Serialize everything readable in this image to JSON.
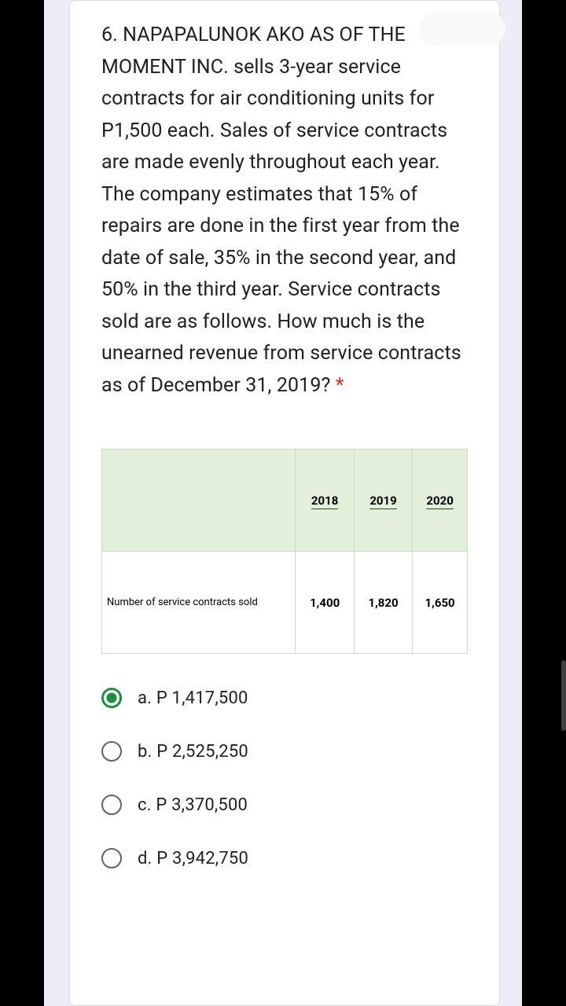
{
  "question": {
    "prefix": "6. ",
    "text": "NAPAPALUNOK AKO AS OF THE MOMENT INC. sells 3-year service contracts for air conditioning units for P1,500 each. Sales of service contracts are made evenly throughout each year. The company estimates that 15% of repairs are done in the first year from the date of sale, 35% in the second year, and 50% in the third year. Service contracts sold are as follows. How much is the unearned revenue from service contracts as of December 31, 2019?",
    "required_marker": " *"
  },
  "table": {
    "headers": [
      "",
      "2018",
      "2019",
      "2020"
    ],
    "row_label": "Number of service contracts sold",
    "row_values": [
      "1,400",
      "1,820",
      "1,650"
    ]
  },
  "options": [
    {
      "label": "a. P 1,417,500",
      "selected": true
    },
    {
      "label": "b. P 2,525,250",
      "selected": false
    },
    {
      "label": "c. P 3,370,500",
      "selected": false
    },
    {
      "label": "d. P 3,942,750",
      "selected": false
    }
  ],
  "colors": {
    "page_bg": "#000000",
    "outer_bg": "#f0ebf8",
    "card_bg": "#ffffff",
    "card_border": "#dadce0",
    "text": "#202124",
    "required": "#d93025",
    "table_header_bg": "#e2efda",
    "table_border": "#d0d7c8",
    "underline": "#c00000",
    "radio_border": "#5f6368",
    "radio_selected": "#1e8e3e",
    "badge_bg": "#f8f9fa"
  }
}
